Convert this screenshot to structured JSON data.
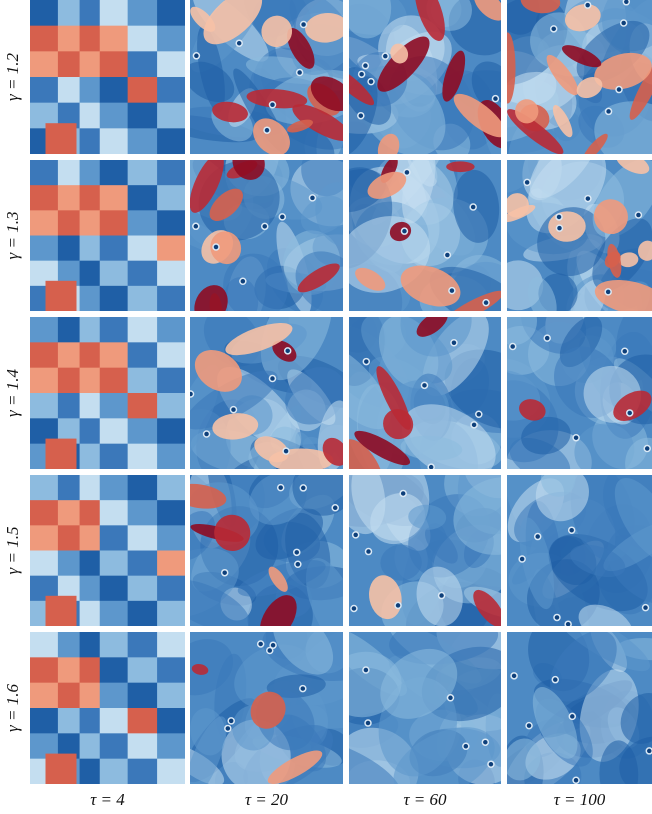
{
  "figure": {
    "row_labels": [
      "γ = 1.2",
      "γ = 1.3",
      "γ = 1.4",
      "γ = 1.5",
      "γ = 1.6"
    ],
    "column_labels": [
      "τ = 4",
      "τ = 20",
      "τ = 60",
      "τ = 100"
    ]
  }
}
